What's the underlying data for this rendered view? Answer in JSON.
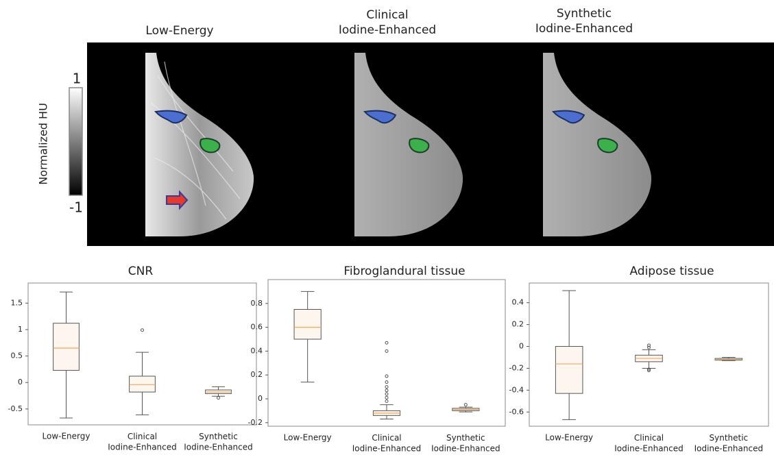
{
  "figure": {
    "panels": [
      {
        "title": "Low-Energy"
      },
      {
        "title": "Clinical\nIodine-Enhanced"
      },
      {
        "title": "Synthetic\nIodine-Enhanced"
      }
    ],
    "colorbar": {
      "label": "Normalized HU",
      "ticks": [
        1,
        -1
      ]
    }
  },
  "chart_data": [
    {
      "type": "box",
      "title": "CNR",
      "categories": [
        "Low-Energy",
        "Clinical\nIodine-Enhanced",
        "Synthetic\nIodine-Enhanced"
      ],
      "boxes": [
        {
          "whislo": -0.67,
          "q1": 0.23,
          "med": 0.65,
          "q3": 1.12,
          "whishi": 1.71,
          "fliers": []
        },
        {
          "whislo": -0.61,
          "q1": -0.18,
          "med": -0.04,
          "q3": 0.12,
          "whishi": 0.57,
          "fliers": [
            0.99
          ]
        },
        {
          "whislo": -0.26,
          "q1": -0.21,
          "med": -0.18,
          "q3": -0.14,
          "whishi": -0.08,
          "fliers": [
            -0.29
          ]
        }
      ],
      "ylim": [
        -0.8,
        1.88
      ],
      "yticks": [
        -0.5,
        0,
        0.5,
        1,
        1.5
      ],
      "color": "#555555",
      "median_color": "#f5a55a"
    },
    {
      "type": "box",
      "title": "Fibroglandural tissue",
      "categories": [
        "Low-Energy",
        "Clinical\nIodine-Enhanced",
        "Synthetic\nIodine-Enhanced"
      ],
      "boxes": [
        {
          "whislo": 0.14,
          "q1": 0.5,
          "med": 0.6,
          "q3": 0.75,
          "whishi": 0.9,
          "fliers": []
        },
        {
          "whislo": -0.17,
          "q1": -0.14,
          "med": -0.12,
          "q3": -0.1,
          "whishi": -0.05,
          "fliers": [
            0.47,
            0.4,
            0.19,
            0.14,
            0.1,
            0.07,
            0.04,
            0.01,
            -0.02
          ]
        },
        {
          "whislo": -0.11,
          "q1": -0.1,
          "med": -0.09,
          "q3": -0.08,
          "whishi": -0.07,
          "fliers": [
            -0.05
          ]
        }
      ],
      "ylim": [
        -0.23,
        1.0
      ],
      "yticks": [
        -0.2,
        0,
        0.2,
        0.4,
        0.6,
        0.8
      ],
      "color": "#555555",
      "median_color": "#f5a55a"
    },
    {
      "type": "box",
      "title": "Adipose tissue",
      "categories": [
        "Low-Energy",
        "Clinical\nIodine-Enhanced",
        "Synthetic\nIodine-Enhanced"
      ],
      "boxes": [
        {
          "whislo": -0.67,
          "q1": -0.43,
          "med": -0.16,
          "q3": 0,
          "whishi": 0.51,
          "fliers": []
        },
        {
          "whislo": -0.2,
          "q1": -0.14,
          "med": -0.11,
          "q3": -0.08,
          "whishi": -0.03,
          "fliers": [
            0.01,
            -0.01,
            -0.21,
            -0.22
          ]
        },
        {
          "whislo": -0.13,
          "q1": -0.125,
          "med": -0.12,
          "q3": -0.11,
          "whishi": -0.1,
          "fliers": []
        }
      ],
      "ylim": [
        -0.73,
        0.58
      ],
      "yticks": [
        -0.6,
        -0.4,
        -0.2,
        0,
        0.2,
        0.4
      ],
      "color": "#555555",
      "median_color": "#f5a55a"
    }
  ]
}
